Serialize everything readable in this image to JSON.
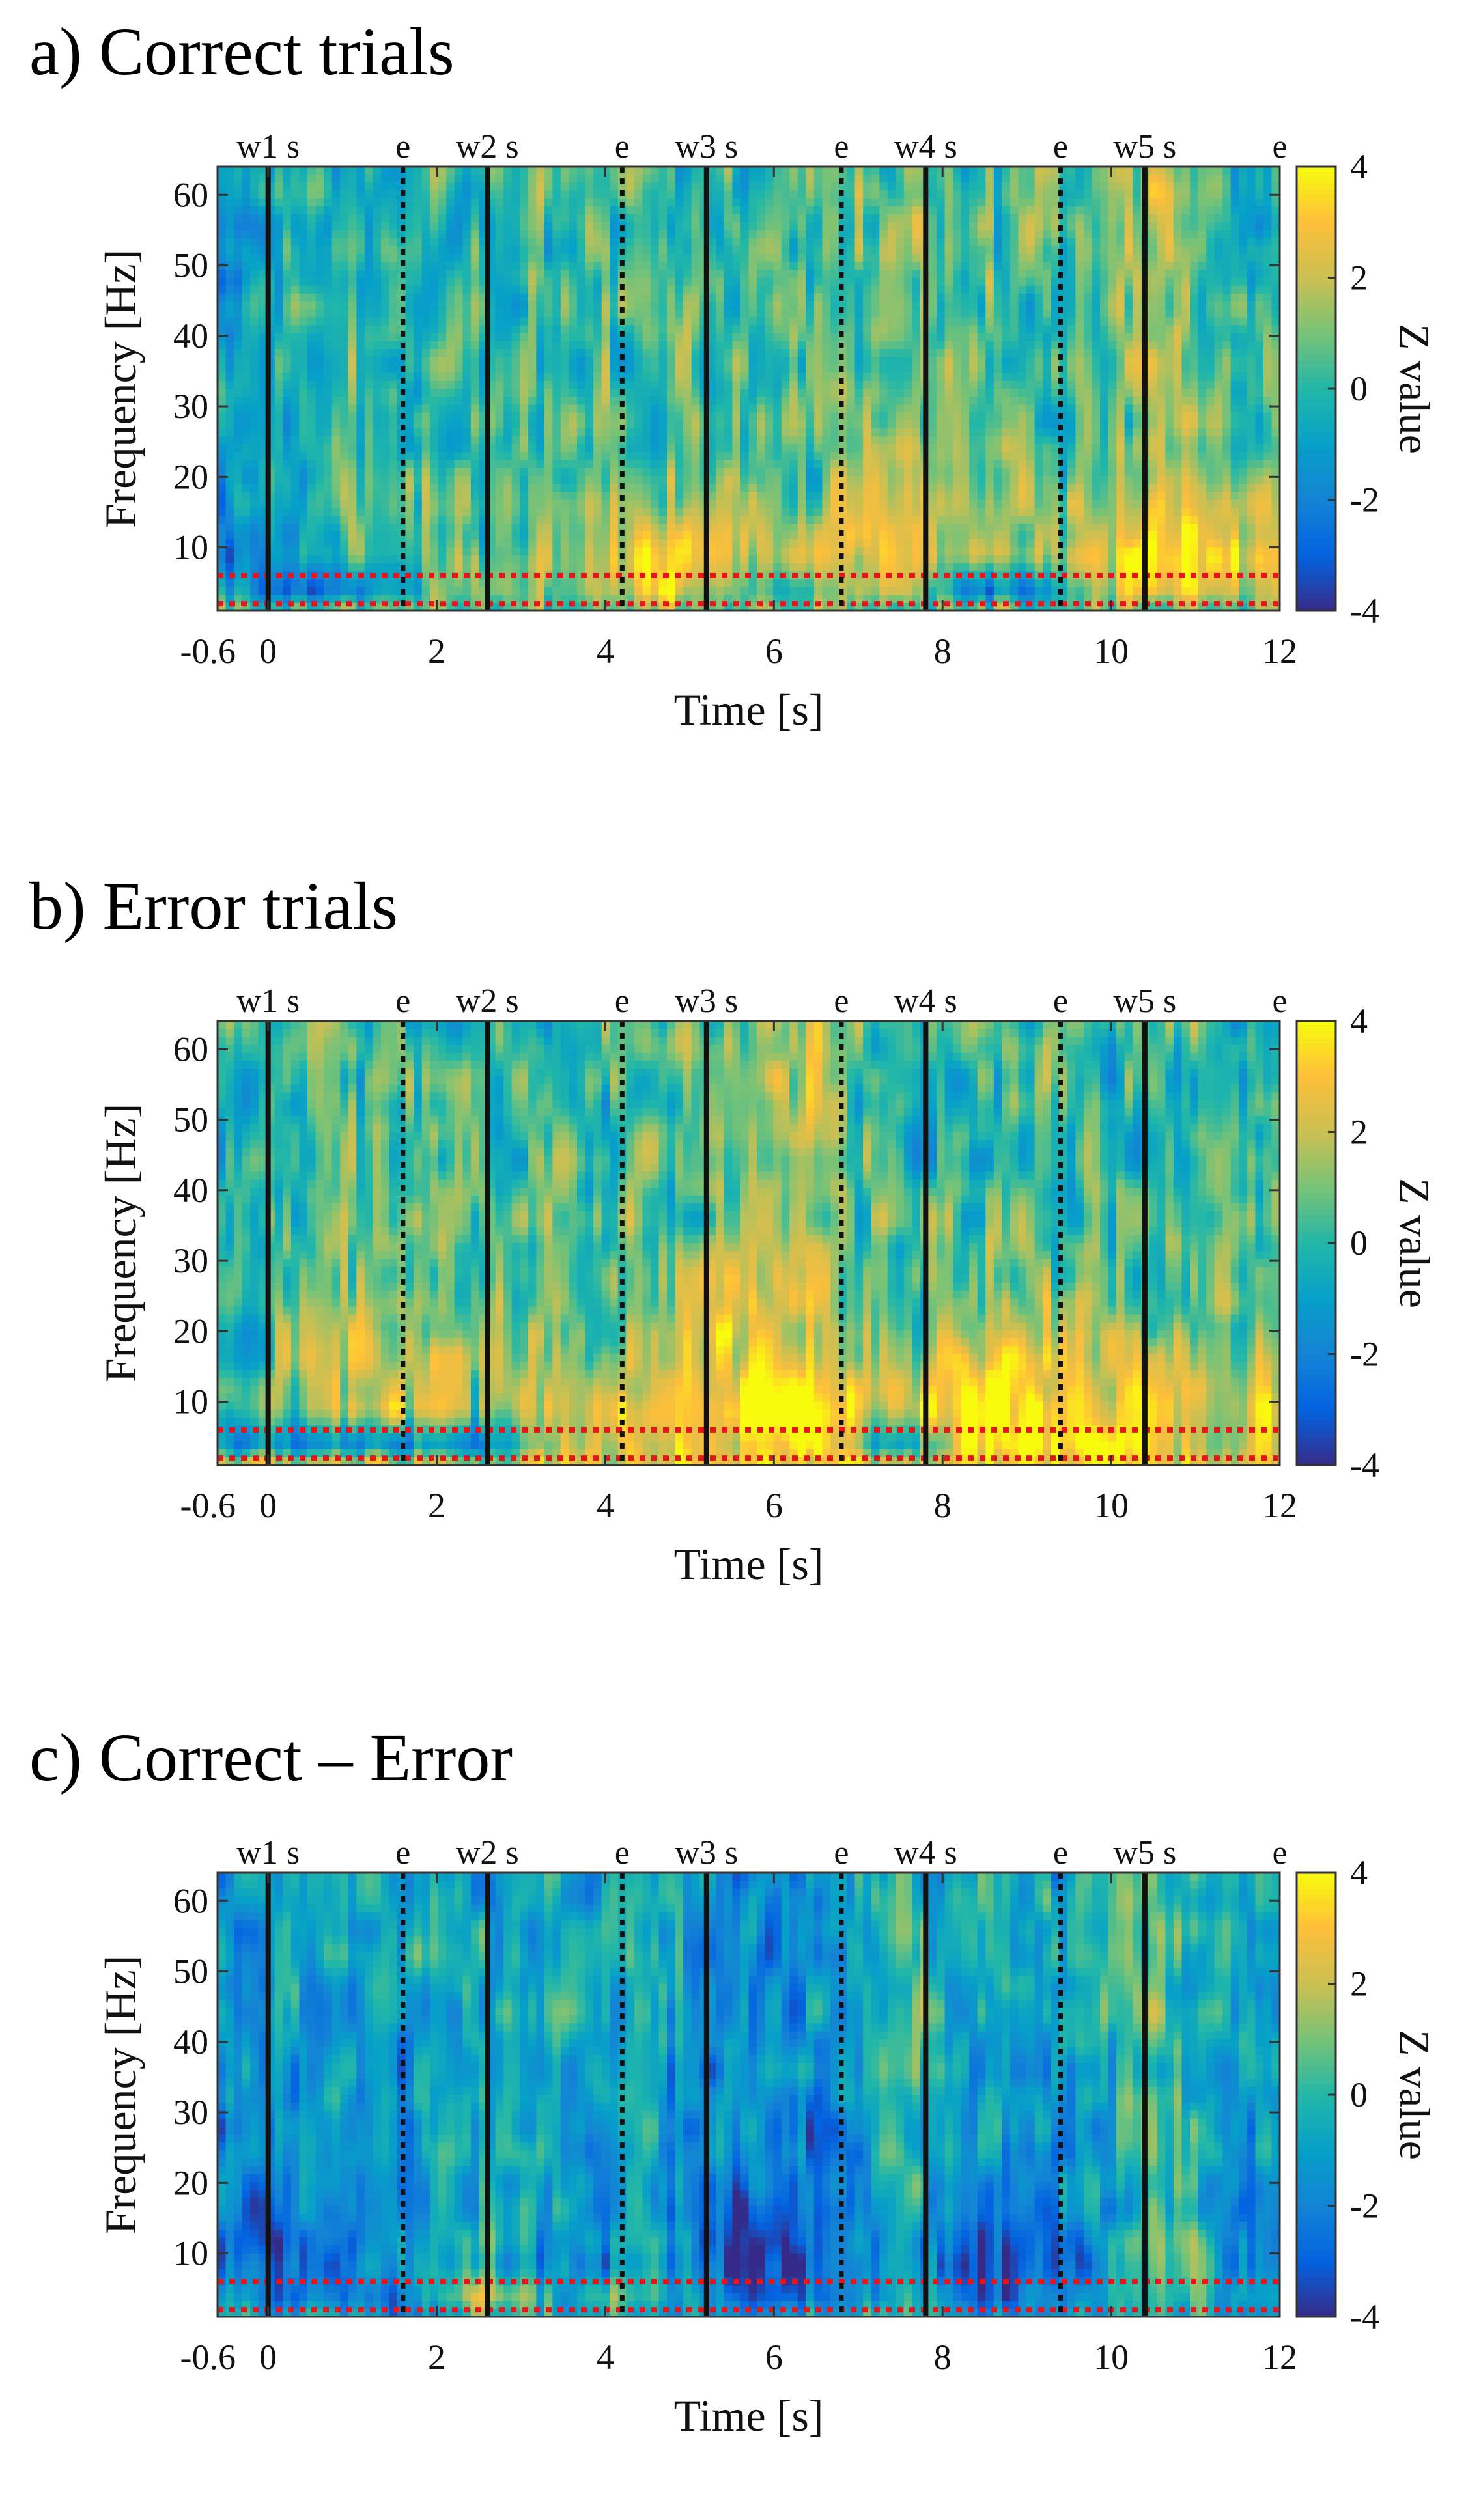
{
  "chart_data": [
    {
      "type": "heatmap",
      "title": "a) Correct trials",
      "xlabel": "Time [s]",
      "ylabel": "Frequency [Hz]",
      "colorbar_label": "Z value",
      "colormap": "parula",
      "xlim": [
        -0.6,
        12
      ],
      "ylim": [
        1,
        64
      ],
      "clim": [
        -4,
        4
      ],
      "xticks": [
        {
          "value": -0.6,
          "label": "-0.6"
        },
        {
          "value": 0,
          "label": "0"
        },
        {
          "value": 2,
          "label": "2"
        },
        {
          "value": 4,
          "label": "4"
        },
        {
          "value": 6,
          "label": "6"
        },
        {
          "value": 8,
          "label": "8"
        },
        {
          "value": 10,
          "label": "10"
        },
        {
          "value": 12,
          "label": "12"
        }
      ],
      "yticks": [
        {
          "value": 10,
          "label": "10"
        },
        {
          "value": 20,
          "label": "20"
        },
        {
          "value": 30,
          "label": "30"
        },
        {
          "value": 40,
          "label": "40"
        },
        {
          "value": 50,
          "label": "50"
        },
        {
          "value": 60,
          "label": "60"
        }
      ],
      "cticks": [
        {
          "value": 4,
          "label": "4"
        },
        {
          "value": 2,
          "label": "2"
        },
        {
          "value": 0,
          "label": "0"
        },
        {
          "value": -2,
          "label": "-2"
        },
        {
          "value": -4,
          "label": "-4"
        }
      ],
      "events": [
        {
          "time": 0,
          "label": "w1 s",
          "style": "solid"
        },
        {
          "time": 1.6,
          "label": "e",
          "style": "dotted"
        },
        {
          "time": 2.6,
          "label": "w2 s",
          "style": "solid"
        },
        {
          "time": 4.2,
          "label": "e",
          "style": "dotted"
        },
        {
          "time": 5.2,
          "label": "w3 s",
          "style": "solid"
        },
        {
          "time": 6.8,
          "label": "e",
          "style": "dotted"
        },
        {
          "time": 7.8,
          "label": "w4 s",
          "style": "solid"
        },
        {
          "time": 9.4,
          "label": "e",
          "style": "dotted"
        },
        {
          "time": 10.4,
          "label": "w5 s",
          "style": "solid"
        },
        {
          "time": 12,
          "label": "e",
          "style": "none"
        }
      ],
      "band_lines_hz": [
        2,
        6
      ],
      "band_line_color": "#e8141c",
      "z_summary": {
        "time_bins": [
          -0.5,
          0.5,
          1.5,
          2.5,
          3.5,
          4.5,
          5.5,
          6.5,
          7.5,
          8.5,
          9.5,
          10.5,
          11.5
        ],
        "bands": [
          {
            "center_hz": 1.5,
            "z": [
              0,
              0,
              1,
              1,
              0.5,
              1,
              1,
              0.5,
              1,
              0,
              0.5,
              1,
              1
            ]
          },
          {
            "center_hz": 4,
            "z": [
              -1,
              -3,
              -1,
              2,
              1,
              3,
              1,
              0,
              3,
              -3,
              0,
              4,
              2
            ]
          },
          {
            "center_hz": 9,
            "z": [
              -2.5,
              0,
              1.5,
              0.5,
              1,
              2.5,
              2,
              2,
              3,
              2,
              1.5,
              4,
              3
            ]
          },
          {
            "center_hz": 21,
            "z": [
              -1.2,
              -0.5,
              0.3,
              0.5,
              0.3,
              0.6,
              0.5,
              0.6,
              1.8,
              0.8,
              0.6,
              1.5,
              1
            ]
          },
          {
            "center_hz": 47,
            "z": [
              -1.2,
              -0.3,
              0,
              0.2,
              0.2,
              0.3,
              0.2,
              0.2,
              0.6,
              0.3,
              0.2,
              1.6,
              0.2
            ]
          }
        ]
      }
    },
    {
      "type": "heatmap",
      "title": "b) Error trials",
      "xlabel": "Time [s]",
      "ylabel": "Frequency [Hz]",
      "colorbar_label": "Z value",
      "colormap": "parula",
      "xlim": [
        -0.6,
        12
      ],
      "ylim": [
        1,
        64
      ],
      "clim": [
        -4,
        4
      ],
      "xticks": [
        {
          "value": -0.6,
          "label": "-0.6"
        },
        {
          "value": 0,
          "label": "0"
        },
        {
          "value": 2,
          "label": "2"
        },
        {
          "value": 4,
          "label": "4"
        },
        {
          "value": 6,
          "label": "6"
        },
        {
          "value": 8,
          "label": "8"
        },
        {
          "value": 10,
          "label": "10"
        },
        {
          "value": 12,
          "label": "12"
        }
      ],
      "yticks": [
        {
          "value": 10,
          "label": "10"
        },
        {
          "value": 20,
          "label": "20"
        },
        {
          "value": 30,
          "label": "30"
        },
        {
          "value": 40,
          "label": "40"
        },
        {
          "value": 50,
          "label": "50"
        },
        {
          "value": 60,
          "label": "60"
        }
      ],
      "cticks": [
        {
          "value": 4,
          "label": "4"
        },
        {
          "value": 2,
          "label": "2"
        },
        {
          "value": 0,
          "label": "0"
        },
        {
          "value": -2,
          "label": "-2"
        },
        {
          "value": -4,
          "label": "-4"
        }
      ],
      "events": [
        {
          "time": 0,
          "label": "w1 s",
          "style": "solid"
        },
        {
          "time": 1.6,
          "label": "e",
          "style": "dotted"
        },
        {
          "time": 2.6,
          "label": "w2 s",
          "style": "solid"
        },
        {
          "time": 4.2,
          "label": "e",
          "style": "dotted"
        },
        {
          "time": 5.2,
          "label": "w3 s",
          "style": "solid"
        },
        {
          "time": 6.8,
          "label": "e",
          "style": "dotted"
        },
        {
          "time": 7.8,
          "label": "w4 s",
          "style": "solid"
        },
        {
          "time": 9.4,
          "label": "e",
          "style": "dotted"
        },
        {
          "time": 10.4,
          "label": "w5 s",
          "style": "solid"
        },
        {
          "time": 12,
          "label": "e",
          "style": "none"
        }
      ],
      "band_lines_hz": [
        2,
        6
      ],
      "band_line_color": "#e8141c",
      "z_summary": {
        "time_bins": [
          -0.5,
          0.5,
          1.5,
          2.5,
          3.5,
          4.5,
          5.5,
          6.5,
          7.5,
          8.5,
          9.5,
          10.5,
          11.5
        ],
        "bands": [
          {
            "center_hz": 1.5,
            "z": [
              1,
              2,
              1,
              1,
              2,
              3,
              3,
              3,
              2,
              3,
              3,
              3,
              2
            ]
          },
          {
            "center_hz": 4,
            "z": [
              -2,
              -2,
              -2,
              -2,
              1,
              3,
              3,
              4,
              -1,
              4,
              4,
              3,
              2
            ]
          },
          {
            "center_hz": 9,
            "z": [
              0,
              1,
              3,
              1,
              2,
              3,
              4,
              4,
              2,
              4,
              4,
              3,
              3
            ]
          },
          {
            "center_hz": 21,
            "z": [
              0,
              1.8,
              1.5,
              0.4,
              0.6,
              1,
              2.5,
              2,
              0,
              1.5,
              1,
              0.5,
              0.5
            ]
          },
          {
            "center_hz": 47,
            "z": [
              -0.5,
              0.2,
              0.2,
              0,
              0,
              0.2,
              0.8,
              1.5,
              0,
              0.3,
              0.2,
              0,
              0
            ]
          }
        ]
      }
    },
    {
      "type": "heatmap",
      "title": "c) Correct – Error",
      "xlabel": "Time [s]",
      "ylabel": "Frequency [Hz]",
      "colorbar_label": "Z value",
      "colormap": "parula",
      "xlim": [
        -0.6,
        12
      ],
      "ylim": [
        1,
        64
      ],
      "clim": [
        -4,
        4
      ],
      "xticks": [
        {
          "value": -0.6,
          "label": "-0.6"
        },
        {
          "value": 0,
          "label": "0"
        },
        {
          "value": 2,
          "label": "2"
        },
        {
          "value": 4,
          "label": "4"
        },
        {
          "value": 6,
          "label": "6"
        },
        {
          "value": 8,
          "label": "8"
        },
        {
          "value": 10,
          "label": "10"
        },
        {
          "value": 12,
          "label": "12"
        }
      ],
      "yticks": [
        {
          "value": 10,
          "label": "10"
        },
        {
          "value": 20,
          "label": "20"
        },
        {
          "value": 30,
          "label": "30"
        },
        {
          "value": 40,
          "label": "40"
        },
        {
          "value": 50,
          "label": "50"
        },
        {
          "value": 60,
          "label": "60"
        }
      ],
      "cticks": [
        {
          "value": 4,
          "label": "4"
        },
        {
          "value": 2,
          "label": "2"
        },
        {
          "value": 0,
          "label": "0"
        },
        {
          "value": -2,
          "label": "-2"
        },
        {
          "value": -4,
          "label": "-4"
        }
      ],
      "events": [
        {
          "time": 0,
          "label": "w1 s",
          "style": "solid"
        },
        {
          "time": 1.6,
          "label": "e",
          "style": "dotted"
        },
        {
          "time": 2.6,
          "label": "w2 s",
          "style": "solid"
        },
        {
          "time": 4.2,
          "label": "e",
          "style": "dotted"
        },
        {
          "time": 5.2,
          "label": "w3 s",
          "style": "solid"
        },
        {
          "time": 6.8,
          "label": "e",
          "style": "dotted"
        },
        {
          "time": 7.8,
          "label": "w4 s",
          "style": "solid"
        },
        {
          "time": 9.4,
          "label": "e",
          "style": "dotted"
        },
        {
          "time": 10.4,
          "label": "w5 s",
          "style": "solid"
        },
        {
          "time": 12,
          "label": "e",
          "style": "none"
        }
      ],
      "band_lines_hz": [
        2,
        6
      ],
      "band_line_color": "#e8141c",
      "z_summary": {
        "time_bins": [
          -0.5,
          0.5,
          1.5,
          2.5,
          3.5,
          4.5,
          5.5,
          6.5,
          7.5,
          8.5,
          9.5,
          10.5,
          11.5
        ],
        "bands": [
          {
            "center_hz": 1.5,
            "z": [
              -1,
              -1,
              -2,
              1,
              -1,
              0,
              -2,
              -1,
              0,
              -2,
              -1,
              0,
              -1
            ]
          },
          {
            "center_hz": 4,
            "z": [
              -2,
              -2.5,
              -2,
              3,
              -1,
              1,
              -3,
              -3,
              -1,
              -3,
              -2,
              1,
              -1
            ]
          },
          {
            "center_hz": 9,
            "z": [
              -3,
              -2.5,
              -2,
              0.5,
              -2,
              -1,
              -3.5,
              -3.5,
              -1,
              -3.5,
              -3,
              1.5,
              -2
            ]
          },
          {
            "center_hz": 21,
            "z": [
              -2,
              -1.5,
              -1.8,
              -0.5,
              -1,
              -0.8,
              -2.2,
              -2.5,
              0,
              -1.8,
              -1.5,
              0.5,
              -1.5
            ]
          },
          {
            "center_hz": 47,
            "z": [
              -1.5,
              -1,
              -1,
              -0.5,
              -0.8,
              -0.8,
              -1.5,
              -1.5,
              0.2,
              -1,
              -1,
              0.8,
              -1
            ]
          }
        ]
      }
    }
  ]
}
